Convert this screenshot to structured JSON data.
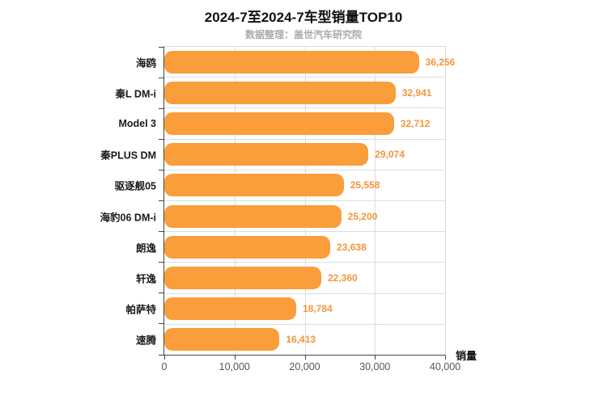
{
  "header": {
    "title": "2024-7至2024-7车型销量TOP10",
    "subtitle": "数据整理：盖世汽车研究院"
  },
  "axis": {
    "x_title": "销量",
    "x_tick_labels": [
      "0",
      "10,000",
      "20,000",
      "30,000",
      "40,000"
    ]
  },
  "colors": {
    "bar": "#FA9D3B",
    "value_label": "#F5953A",
    "grid": "#DDDDDD",
    "axis": "#444444",
    "subtitle": "#AAAAAA"
  },
  "chart_data": {
    "type": "bar",
    "orientation": "horizontal",
    "title": "2024-7至2024-7车型销量TOP10",
    "subtitle": "数据整理：盖世汽车研究院",
    "categories": [
      "海鸥",
      "秦L DM-i",
      "Model 3",
      "秦PLUS DM",
      "驱逐舰05",
      "海豹06 DM-i",
      "朗逸",
      "轩逸",
      "帕萨特",
      "速腾"
    ],
    "values": [
      36256,
      32941,
      32712,
      29074,
      25558,
      25200,
      23638,
      22360,
      18784,
      16413
    ],
    "value_labels": [
      "36,256",
      "32,941",
      "32,712",
      "29,074",
      "25,558",
      "25,200",
      "23,638",
      "22,360",
      "18,784",
      "16,413"
    ],
    "xlabel": "销量",
    "ylabel": "",
    "xlim": [
      0,
      40000
    ],
    "x_ticks": [
      0,
      10000,
      20000,
      30000,
      40000
    ],
    "grid": true,
    "legend_position": "none"
  }
}
